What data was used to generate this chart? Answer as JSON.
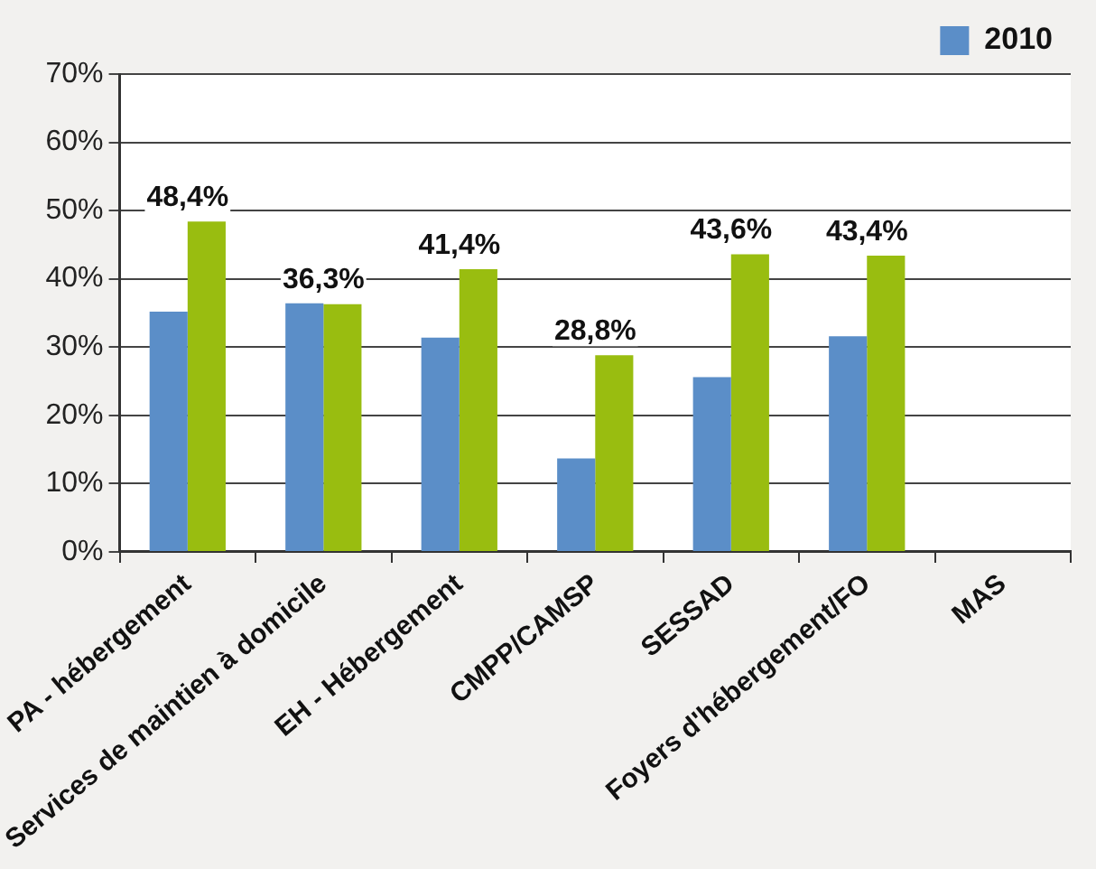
{
  "chart_data": {
    "type": "bar",
    "categories": [
      "PA - hébergement",
      "Services de maintien à domicile",
      "EH - Hébergement",
      "CMPP/CAMSP",
      "SESSAD",
      "Foyers d'hébergement/FO",
      "MAS"
    ],
    "series": [
      {
        "name": "2010",
        "color": "#5b8ec8",
        "values": [
          35.2,
          36.4,
          31.4,
          13.7,
          25.6,
          31.6,
          null
        ]
      },
      {
        "color": "#99bd10",
        "values": [
          48.4,
          36.3,
          41.4,
          28.8,
          43.6,
          43.4,
          null
        ],
        "value_labels": [
          "48,4%",
          "36,3%",
          "41,4%",
          "28,8%",
          "43,6%",
          "43,4%",
          null
        ]
      }
    ],
    "ylim": [
      0,
      70
    ],
    "yticks": [
      {
        "value": 0,
        "label": "0%"
      },
      {
        "value": 10,
        "label": "10%"
      },
      {
        "value": 20,
        "label": "20%"
      },
      {
        "value": 30,
        "label": "30%"
      },
      {
        "value": 40,
        "label": "40%"
      },
      {
        "value": 50,
        "label": "50%"
      },
      {
        "value": 60,
        "label": "60%"
      },
      {
        "value": 70,
        "label": "70%"
      }
    ],
    "grid": "y",
    "legend": "top right"
  }
}
